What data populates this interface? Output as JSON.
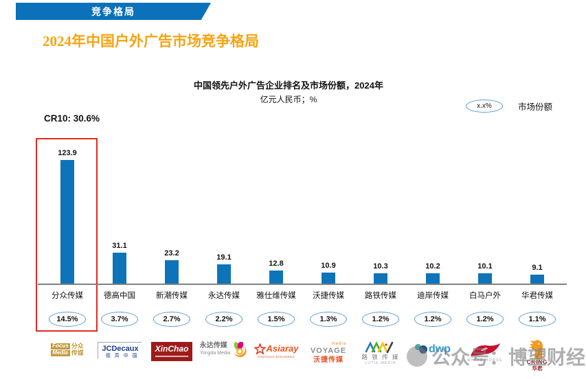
{
  "banner": {
    "label": "竞争格局"
  },
  "page_title": "2024年中国户外广告市场竞争格局",
  "cr10_label": "CR10: 30.6%",
  "legend": {
    "sample": "x.x%",
    "label": "市场份额"
  },
  "colors": {
    "bar": "#0e74ba",
    "banner_blue": "#0a71ba",
    "title_orange": "#f7a311",
    "highlight_red": "#e02b20",
    "oval_border": "#5b9bd5"
  },
  "chart_data": {
    "type": "bar",
    "title": "中国领先户外广告企业排名及市场份额，2024年",
    "subtitle": "亿元人民币；%",
    "categories": [
      "分众传媒",
      "德高中国",
      "新潮传媒",
      "永达传媒",
      "雅仕维传媒",
      "沃捷传媒",
      "路铁传媒",
      "迪岸传媒",
      "白马户外",
      "华君传媒"
    ],
    "values": [
      123.9,
      31.1,
      23.2,
      19.1,
      12.8,
      10.9,
      10.3,
      10.2,
      10.1,
      9.1
    ],
    "market_share": [
      "14.5%",
      "3.7%",
      "2.7%",
      "2.2%",
      "1.5%",
      "1.3%",
      "1.2%",
      "1.2%",
      "1.2%",
      "1.1%"
    ],
    "cr10": "30.6%",
    "highlight_index": 0,
    "ylim": [
      0,
      130
    ],
    "grid": false,
    "value_labels": true,
    "legend_position": "top-right"
  },
  "logos": {
    "focus": {
      "line1": "Focus",
      "line2": "Media",
      "cn1": "分众",
      "cn2": "传媒"
    },
    "jcdecaux": {
      "name": "JCDecaux",
      "cn": "德 高 中 国"
    },
    "xinchao": {
      "name": "XinChao"
    },
    "yongda": {
      "cn": "永达传媒",
      "en": "Yongda Media"
    },
    "asiaray": {
      "name": "Asiaray",
      "tagline": "Inspiration Everywhere"
    },
    "voyage": {
      "media": "media",
      "en": "VOYAGE",
      "cn": "沃捷传媒"
    },
    "lutie": {
      "cn": "路 铁 传 媒",
      "en": "LUTIE MEDIA"
    },
    "dwp": {
      "name": "dwp"
    },
    "whitehorse": {
      "en": "WHITE HORSE"
    },
    "cking": {
      "en": "CKING",
      "cn": "华君"
    }
  },
  "watermark": {
    "text": "公众号：博望财经"
  }
}
